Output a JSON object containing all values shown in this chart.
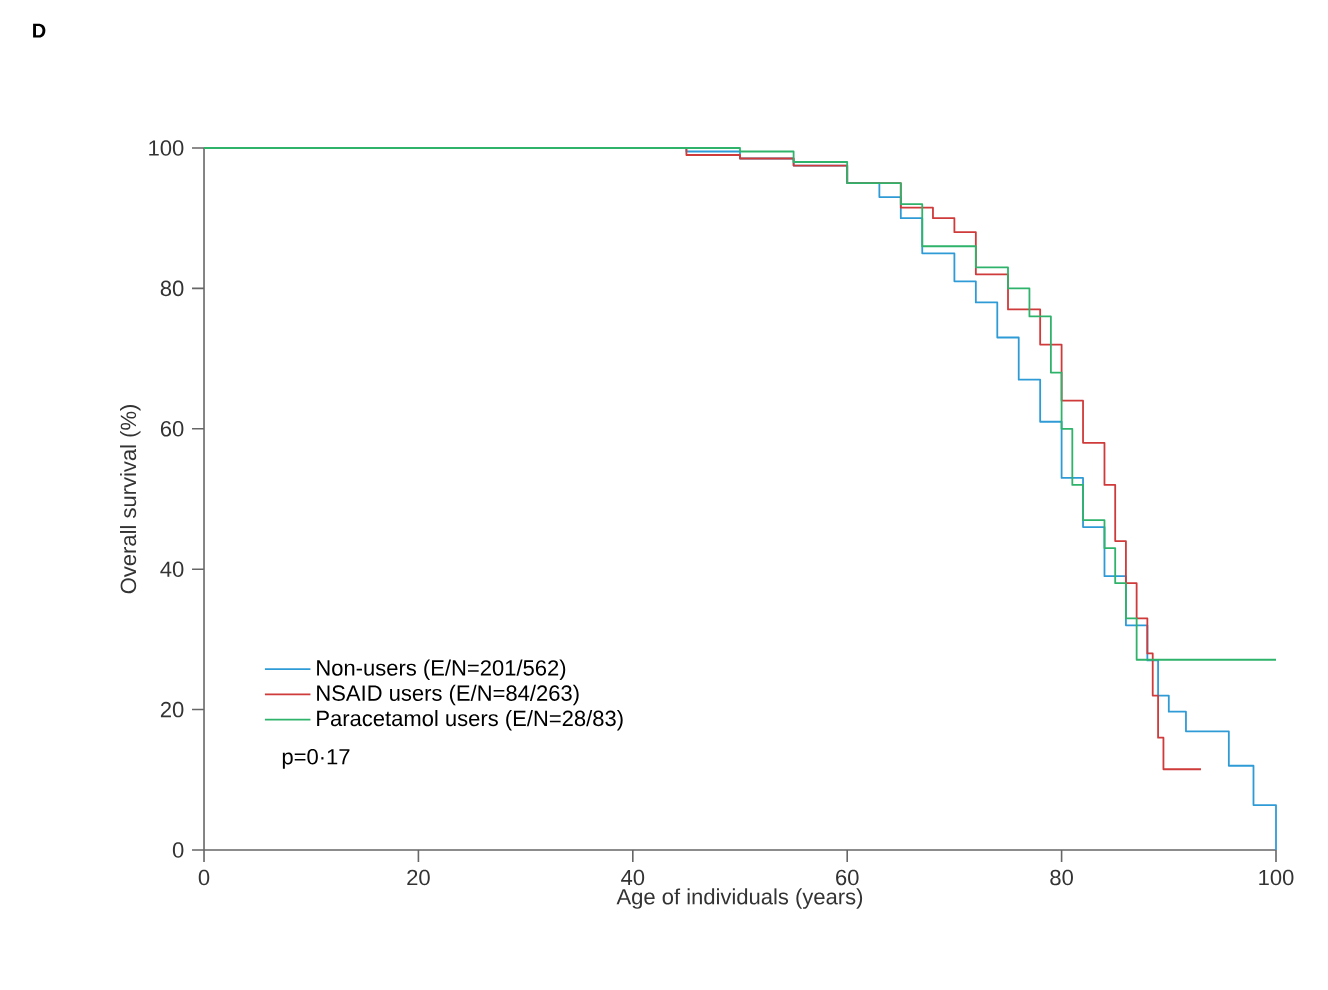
{
  "chart_data": {
    "type": "step",
    "title": "D",
    "xlabel": "Age of individuals (years)",
    "ylabel": "Overall survival (%)",
    "xlim": [
      0,
      100
    ],
    "ylim": [
      0,
      100
    ],
    "xticks": [
      0,
      20,
      40,
      60,
      80,
      100
    ],
    "yticks": [
      0,
      20,
      40,
      60,
      80,
      100
    ],
    "grid": false,
    "legend": "bottom left",
    "marker": "none",
    "line_style": "solid",
    "annotations": [
      "p=0·17"
    ],
    "series": [
      {
        "name": "Non-users (E/N=201/562)",
        "color": "#2f9bd6",
        "x": [
          0,
          45,
          50,
          55,
          60,
          63,
          65,
          67,
          70,
          72,
          74,
          76,
          78,
          80,
          82,
          84,
          86,
          88,
          89,
          90,
          91.6,
          95.6,
          97.9,
          100,
          100
        ],
        "values": [
          100,
          99.5,
          98.5,
          97.5,
          95,
          93,
          90,
          85,
          81,
          78,
          73,
          67,
          61,
          53,
          46,
          39,
          32,
          27,
          22,
          19.7,
          16.9,
          12,
          6.4,
          6.4,
          0
        ]
      },
      {
        "name": "NSAID users (E/N=84/263)",
        "color": "#cf3a3a",
        "x": [
          0,
          45,
          50,
          55,
          60,
          65,
          68,
          70,
          72,
          75,
          78,
          80,
          82,
          84,
          85,
          86,
          87,
          88,
          88.5,
          89,
          89.5,
          93
        ],
        "values": [
          100,
          99,
          98.5,
          97.5,
          95,
          91.5,
          90,
          88,
          82,
          77,
          72,
          64,
          58,
          52,
          44,
          38,
          33,
          28,
          22,
          16,
          11.5,
          11.5
        ]
      },
      {
        "name": "Paracetamol users (E/N=28/83)",
        "color": "#2fb36b",
        "x": [
          0,
          40,
          45,
          50,
          55,
          60,
          65,
          67,
          70,
          72,
          75,
          77,
          79,
          80,
          81,
          82,
          84,
          85,
          86,
          87,
          100
        ],
        "values": [
          100,
          100,
          100,
          99.5,
          98,
          95,
          92,
          86,
          86,
          83,
          80,
          76,
          68,
          60,
          52,
          47,
          43,
          38,
          33,
          27.1,
          27.1
        ]
      }
    ]
  }
}
